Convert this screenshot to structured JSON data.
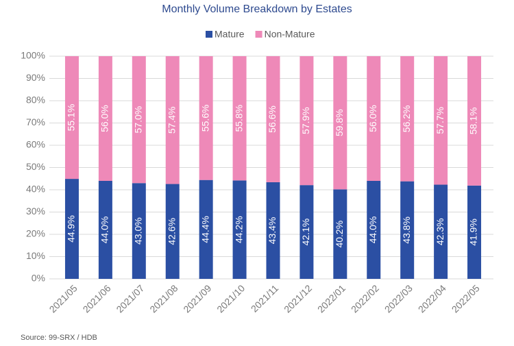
{
  "chart_data": {
    "type": "stacked_bar",
    "title": "Monthly Volume Breakdown by Estates",
    "categories": [
      "2021/05",
      "2021/06",
      "2021/07",
      "2021/08",
      "2021/09",
      "2021/10",
      "2021/11",
      "2021/12",
      "2022/01",
      "2022/02",
      "2022/03",
      "2022/04",
      "2022/05"
    ],
    "series": [
      {
        "name": "Mature",
        "color": "#2b4fa3",
        "values": [
          44.9,
          44.0,
          43.0,
          42.6,
          44.4,
          44.2,
          43.4,
          42.1,
          40.2,
          44.0,
          43.8,
          42.3,
          41.9
        ],
        "value_labels": [
          "44.9%",
          "44.0%",
          "43.0%",
          "42.6%",
          "44.4%",
          "44.2%",
          "43.4%",
          "42.1%",
          "40.2%",
          "44.0%",
          "43.8%",
          "42.3%",
          "41.9%"
        ]
      },
      {
        "name": "Non-Mature",
        "color": "#ee89b8",
        "values": [
          55.1,
          56.0,
          57.0,
          57.4,
          55.6,
          55.8,
          56.6,
          57.9,
          59.8,
          56.0,
          56.2,
          57.7,
          58.1
        ],
        "value_labels": [
          "55.1%",
          "56.0%",
          "57.0%",
          "57.4%",
          "55.6%",
          "55.8%",
          "56.6%",
          "57.9%",
          "59.8%",
          "56.0%",
          "56.2%",
          "57.7%",
          "58.1%"
        ]
      }
    ],
    "ylim": [
      0,
      100
    ],
    "yticks": [
      {
        "value": 0,
        "label": "0%"
      },
      {
        "value": 10,
        "label": "10%"
      },
      {
        "value": 20,
        "label": "20%"
      },
      {
        "value": 30,
        "label": "30%"
      },
      {
        "value": 40,
        "label": "40%"
      },
      {
        "value": 50,
        "label": "50%"
      },
      {
        "value": 60,
        "label": "60%"
      },
      {
        "value": 70,
        "label": "70%"
      },
      {
        "value": 80,
        "label": "80%"
      },
      {
        "value": 90,
        "label": "90%"
      },
      {
        "value": 100,
        "label": "100%"
      }
    ],
    "grid": true,
    "legend": "top",
    "source": "Source: 99-SRX / HDB"
  }
}
